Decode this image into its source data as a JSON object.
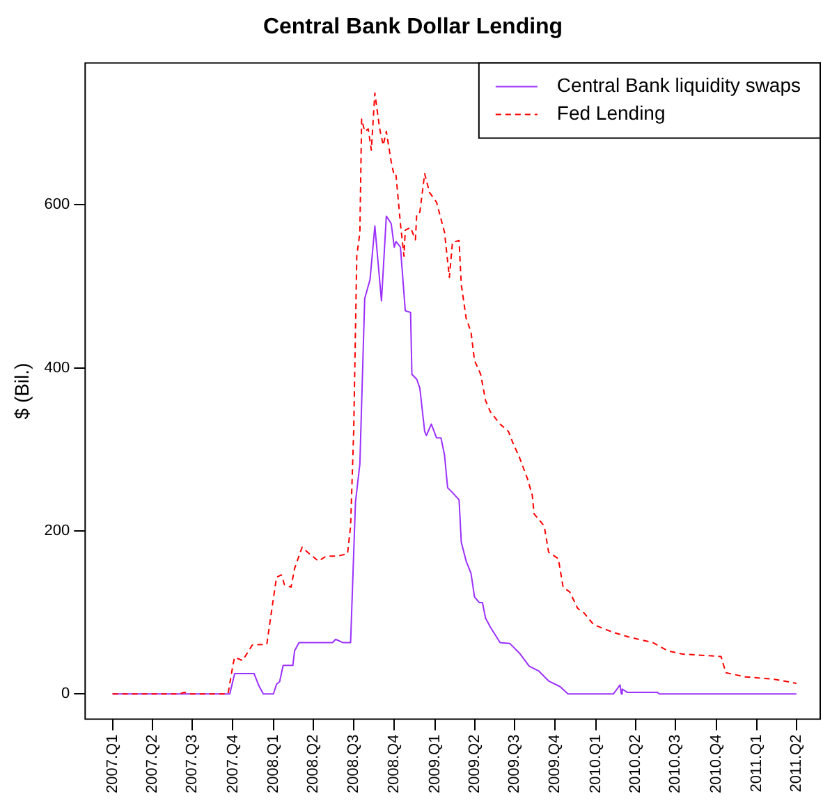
{
  "chart_data": {
    "type": "line",
    "title": "Central Bank Dollar Lending",
    "ylabel": "$ (Bil.)",
    "xlim": [
      "2006-10-31",
      "2011-05-25"
    ],
    "ylim": [
      -31,
      774
    ],
    "xticks": [
      {
        "value": "2007-01-01",
        "label": "2007.Q1"
      },
      {
        "value": "2007-04-01",
        "label": "2007.Q2"
      },
      {
        "value": "2007-07-01",
        "label": "2007.Q3"
      },
      {
        "value": "2007-10-01",
        "label": "2007.Q4"
      },
      {
        "value": "2008-01-01",
        "label": "2008.Q1"
      },
      {
        "value": "2008-04-01",
        "label": "2008.Q2"
      },
      {
        "value": "2008-07-01",
        "label": "2008.Q3"
      },
      {
        "value": "2008-10-01",
        "label": "2008.Q4"
      },
      {
        "value": "2009-01-01",
        "label": "2009.Q1"
      },
      {
        "value": "2009-04-01",
        "label": "2009.Q2"
      },
      {
        "value": "2009-07-01",
        "label": "2009.Q3"
      },
      {
        "value": "2009-10-01",
        "label": "2009.Q4"
      },
      {
        "value": "2010-01-01",
        "label": "2010.Q1"
      },
      {
        "value": "2010-04-01",
        "label": "2010.Q2"
      },
      {
        "value": "2010-07-01",
        "label": "2010.Q3"
      },
      {
        "value": "2010-10-01",
        "label": "2010.Q4"
      },
      {
        "value": "2011-01-01",
        "label": "2011.Q1"
      },
      {
        "value": "2011-04-01",
        "label": "2011.Q2"
      }
    ],
    "yticks": [
      0,
      200,
      400,
      600
    ],
    "grid": false,
    "legend": "top right",
    "marker": "none",
    "series": [
      {
        "name": "Central Bank liquidity swaps",
        "color": "#9b30ff",
        "line_style": "solid",
        "x": [
          "2007-01-01",
          "2007-09-24",
          "2007-10-05",
          "2007-11-18",
          "2007-11-29",
          "2007-12-09",
          "2008-01-01",
          "2008-01-08",
          "2008-01-15",
          "2008-01-23",
          "2008-02-14",
          "2008-02-18",
          "2008-02-28",
          "2008-05-14",
          "2008-05-21",
          "2008-06-06",
          "2008-06-24",
          "2008-07-05",
          "2008-07-15",
          "2008-07-26",
          "2008-08-07",
          "2008-08-18",
          "2008-09-02",
          "2008-09-13",
          "2008-09-24",
          "2008-10-01",
          "2008-10-05",
          "2008-10-15",
          "2008-10-26",
          "2008-11-07",
          "2008-11-10",
          "2008-11-21",
          "2008-11-28",
          "2008-12-09",
          "2008-12-13",
          "2008-12-24",
          "2009-01-05",
          "2009-01-15",
          "2009-01-23",
          "2009-01-30",
          "2009-02-10",
          "2009-02-25",
          "2009-03-02",
          "2009-03-13",
          "2009-03-24",
          "2009-04-01",
          "2009-04-12",
          "2009-04-19",
          "2009-04-26",
          "2009-05-07",
          "2009-05-29",
          "2009-06-20",
          "2009-07-12",
          "2009-08-03",
          "2009-08-25",
          "2009-09-16",
          "2009-10-12",
          "2009-10-30",
          "2010-02-10",
          "2010-02-25",
          "2010-02-28",
          "2010-03-02",
          "2010-03-13",
          "2010-05-21",
          "2010-05-25",
          "2011-04-01"
        ],
        "values": [
          0,
          0,
          25,
          25,
          10,
          0,
          0,
          12,
          15,
          35,
          35,
          53,
          63,
          63,
          67,
          63,
          63,
          235,
          282,
          485,
          508,
          574,
          482,
          586,
          577,
          548,
          555,
          548,
          470,
          468,
          392,
          386,
          375,
          322,
          317,
          331,
          314,
          314,
          293,
          253,
          247,
          238,
          186,
          163,
          148,
          119,
          112,
          112,
          93,
          82,
          63,
          62,
          50,
          34,
          28,
          16,
          9,
          0,
          0,
          11,
          0,
          6,
          2,
          2,
          0,
          0
        ]
      },
      {
        "name": "Fed Lending",
        "color": "#ff0000",
        "line_style": "dashed",
        "x": [
          "2007-01-01",
          "2007-06-02",
          "2007-06-13",
          "2007-06-24",
          "2007-09-20",
          "2007-10-01",
          "2007-10-05",
          "2007-10-23",
          "2007-11-14",
          "2007-12-17",
          "2007-12-27",
          "2008-01-08",
          "2008-01-19",
          "2008-01-26",
          "2008-02-10",
          "2008-02-18",
          "2008-03-06",
          "2008-03-20",
          "2008-04-12",
          "2008-04-30",
          "2008-05-25",
          "2008-06-17",
          "2008-06-24",
          "2008-07-01",
          "2008-07-08",
          "2008-07-15",
          "2008-07-19",
          "2008-07-26",
          "2008-08-03",
          "2008-08-10",
          "2008-08-18",
          "2008-08-29",
          "2008-09-06",
          "2008-09-13",
          "2008-09-24",
          "2008-10-01",
          "2008-10-05",
          "2008-10-15",
          "2008-10-23",
          "2008-10-26",
          "2008-11-07",
          "2008-11-18",
          "2008-11-21",
          "2008-11-28",
          "2008-12-09",
          "2008-12-20",
          "2009-01-05",
          "2009-01-23",
          "2009-02-03",
          "2009-02-10",
          "2009-02-25",
          "2009-03-02",
          "2009-03-13",
          "2009-03-24",
          "2009-04-01",
          "2009-04-15",
          "2009-04-26",
          "2009-05-07",
          "2009-05-29",
          "2009-06-17",
          "2009-06-27",
          "2009-07-12",
          "2009-07-30",
          "2009-08-10",
          "2009-08-14",
          "2009-09-06",
          "2009-09-16",
          "2009-10-08",
          "2009-10-19",
          "2009-11-03",
          "2009-11-21",
          "2009-12-06",
          "2009-12-27",
          "2010-02-07",
          "2010-03-16",
          "2010-05-10",
          "2010-06-13",
          "2010-07-15",
          "2010-10-12",
          "2010-10-23",
          "2010-12-06",
          "2011-02-10",
          "2011-04-01"
        ],
        "values": [
          0,
          0,
          2,
          0,
          0,
          35,
          45,
          41,
          60,
          61,
          99,
          143,
          146,
          134,
          131,
          154,
          180,
          173,
          163,
          169,
          169,
          172,
          206,
          322,
          537,
          566,
          705,
          690,
          693,
          667,
          737,
          693,
          673,
          690,
          653,
          635,
          636,
          577,
          537,
          569,
          572,
          557,
          589,
          591,
          638,
          615,
          603,
          566,
          511,
          554,
          556,
          502,
          461,
          444,
          409,
          392,
          360,
          346,
          331,
          322,
          308,
          290,
          264,
          244,
          221,
          206,
          174,
          166,
          131,
          125,
          105,
          99,
          85,
          76,
          70,
          63,
          53,
          49,
          46,
          26,
          21,
          18,
          13
        ]
      }
    ]
  }
}
